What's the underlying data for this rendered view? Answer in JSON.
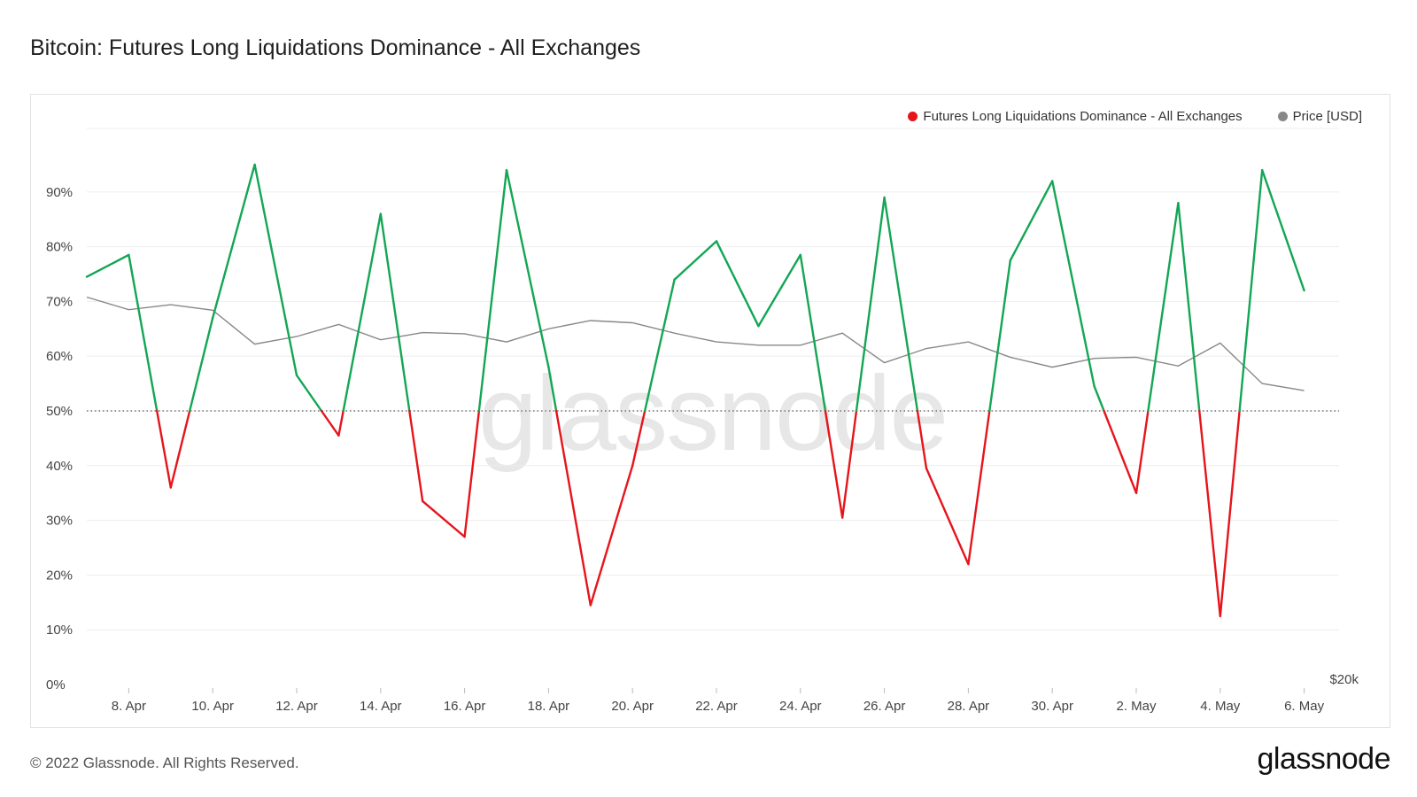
{
  "title": "Bitcoin: Futures Long Liquidations Dominance - All Exchanges",
  "footer": "© 2022 Glassnode. All Rights Reserved.",
  "brand": "glassnode",
  "watermark": "glassnode",
  "colors": {
    "above": "#13a654",
    "below": "#e6141b",
    "price": "#888888",
    "grid": "#eeeeee",
    "threshold": "#555555"
  },
  "chart_data": {
    "type": "line",
    "x": [
      "Apr 7",
      "Apr 8",
      "Apr 9",
      "Apr 10",
      "Apr 11",
      "Apr 12",
      "Apr 13",
      "Apr 14",
      "Apr 15",
      "Apr 16",
      "Apr 17",
      "Apr 18",
      "Apr 19",
      "Apr 20",
      "Apr 21",
      "Apr 22",
      "Apr 23",
      "Apr 24",
      "Apr 25",
      "Apr 26",
      "Apr 27",
      "Apr 28",
      "Apr 29",
      "Apr 30",
      "May 1",
      "May 2",
      "May 3",
      "May 4",
      "May 5",
      "May 6"
    ],
    "x_ticks": [
      "8. Apr",
      "10. Apr",
      "12. Apr",
      "14. Apr",
      "16. Apr",
      "18. Apr",
      "20. Apr",
      "22. Apr",
      "24. Apr",
      "26. Apr",
      "28. Apr",
      "30. Apr",
      "2. May",
      "4. May",
      "6. May"
    ],
    "y_ticks": [
      "0%",
      "10%",
      "20%",
      "30%",
      "40%",
      "50%",
      "60%",
      "70%",
      "80%",
      "90%"
    ],
    "ylim": [
      0,
      100
    ],
    "right_axis_label": "$20k",
    "threshold": 50,
    "series": [
      {
        "name": "Futures Long Liquidations Dominance - All Exchanges",
        "values": [
          74.5,
          78.5,
          36,
          67,
          95,
          56.5,
          45.5,
          86,
          33.5,
          27,
          94,
          58,
          14.5,
          40,
          74,
          81,
          65.5,
          78.5,
          30.5,
          89,
          39.5,
          22,
          77.5,
          92,
          54.5,
          35,
          88,
          12.5,
          94,
          72
        ]
      },
      {
        "name": "Price [USD]",
        "values": [
          70.8,
          68.5,
          69.4,
          68.4,
          62.2,
          63.6,
          65.8,
          63,
          64.3,
          64.1,
          62.6,
          65,
          66.5,
          66.1,
          64.2,
          62.6,
          62,
          62,
          64.2,
          58.8,
          61.4,
          62.6,
          59.8,
          58,
          59.6,
          59.8,
          58.2,
          62.4,
          55,
          53.7
        ]
      }
    ]
  }
}
